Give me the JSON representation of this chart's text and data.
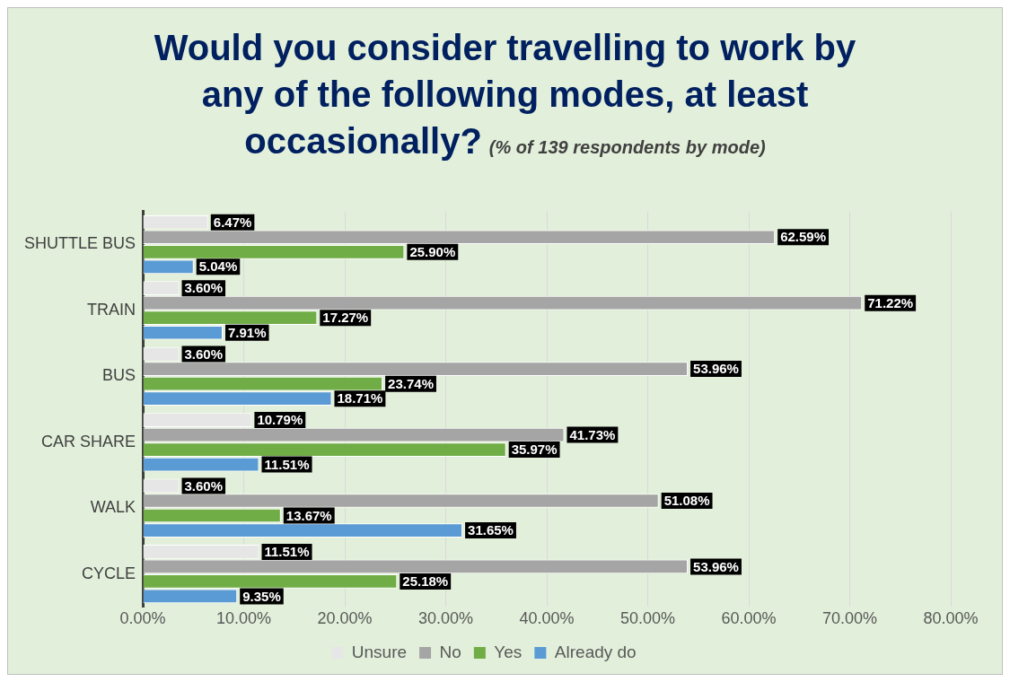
{
  "chart_data": {
    "type": "bar",
    "orientation": "horizontal",
    "title": "Would you consider travelling to work by any of the following modes, at least occasionally?",
    "subtitle": "(% of 139 respondents by mode)",
    "categories": [
      "SHUTTLE BUS",
      "TRAIN",
      "BUS",
      "CAR SHARE",
      "WALK",
      "CYCLE"
    ],
    "series": [
      {
        "name": "Unsure",
        "color": "#e7e6e6",
        "values": [
          6.47,
          3.6,
          3.6,
          10.79,
          3.6,
          11.51
        ],
        "value_labels": [
          "6.47%",
          "3.60%",
          "3.60%",
          "10.79%",
          "3.60%",
          "11.51%"
        ]
      },
      {
        "name": "No",
        "color": "#a5a5a5",
        "values": [
          62.59,
          71.22,
          53.96,
          41.73,
          51.08,
          53.96
        ],
        "value_labels": [
          "62.59%",
          "71.22%",
          "53.96%",
          "41.73%",
          "51.08%",
          "53.96%"
        ]
      },
      {
        "name": "Yes",
        "color": "#70ad47",
        "values": [
          25.9,
          17.27,
          23.74,
          35.97,
          13.67,
          25.18
        ],
        "value_labels": [
          "25.90%",
          "17.27%",
          "23.74%",
          "35.97%",
          "13.67%",
          "25.18%"
        ]
      },
      {
        "name": "Already do",
        "color": "#5b9bd5",
        "values": [
          5.04,
          7.91,
          18.71,
          11.51,
          31.65,
          9.35
        ],
        "value_labels": [
          "5.04%",
          "7.91%",
          "18.71%",
          "11.51%",
          "31.65%",
          "9.35%"
        ]
      }
    ],
    "xlim": [
      0,
      80
    ],
    "xticks": [
      {
        "value": 0,
        "label": "0.00%"
      },
      {
        "value": 10,
        "label": "10.00%"
      },
      {
        "value": 20,
        "label": "20.00%"
      },
      {
        "value": 30,
        "label": "30.00%"
      },
      {
        "value": 40,
        "label": "40.00%"
      },
      {
        "value": 50,
        "label": "50.00%"
      },
      {
        "value": 60,
        "label": "60.00%"
      },
      {
        "value": 70,
        "label": "70.00%"
      },
      {
        "value": 80,
        "label": "80.00%"
      }
    ],
    "grid": "x",
    "legend": "bottom"
  }
}
